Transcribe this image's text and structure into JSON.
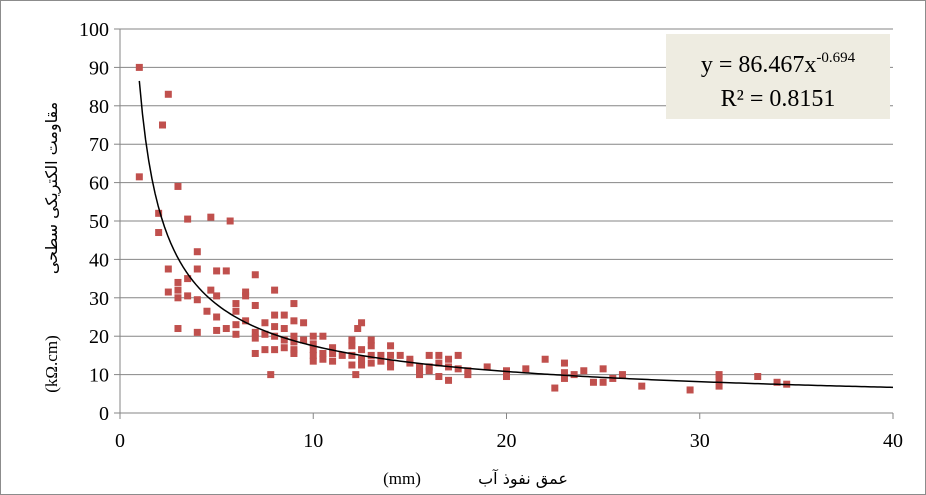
{
  "chart_data": {
    "type": "scatter",
    "xlabel": {
      "text": "عمق نفوذ آب",
      "unit": "(mm)"
    },
    "ylabel": {
      "text": "مقاومت الکتریکی سطحی",
      "unit": "(kΩ.cm)"
    },
    "xlim": [
      0,
      40
    ],
    "ylim": [
      0,
      100
    ],
    "x_ticks": [
      0,
      10,
      20,
      30,
      40
    ],
    "y_ticks": [
      0,
      10,
      20,
      30,
      40,
      50,
      60,
      70,
      80,
      90,
      100
    ],
    "grid": "horizontal",
    "marker_color": "#c0504d",
    "trendline_color": "#000000",
    "equation_box_color": "#eeece1",
    "trendline": {
      "type": "power",
      "a": 86.467,
      "b": -0.694,
      "x_range": [
        1,
        40
      ],
      "equation_prefix": "y = 86.467x",
      "equation_exponent": "-0.694",
      "r2_label": "R² = 0.8151"
    },
    "points": [
      [
        1.0,
        90.0
      ],
      [
        1.0,
        61.5
      ],
      [
        2.0,
        52.0
      ],
      [
        2.0,
        47.0
      ],
      [
        2.2,
        75.0
      ],
      [
        2.5,
        83.0
      ],
      [
        2.5,
        37.5
      ],
      [
        2.5,
        31.5
      ],
      [
        3.0,
        59.0
      ],
      [
        3.0,
        34.0
      ],
      [
        3.0,
        32.0
      ],
      [
        3.0,
        30.0
      ],
      [
        3.0,
        22.0
      ],
      [
        3.5,
        50.5
      ],
      [
        3.5,
        35.0
      ],
      [
        3.5,
        30.5
      ],
      [
        4.0,
        42.0
      ],
      [
        4.0,
        37.5
      ],
      [
        4.0,
        29.5
      ],
      [
        4.0,
        21.0
      ],
      [
        4.5,
        26.5
      ],
      [
        4.7,
        51.0
      ],
      [
        4.7,
        32.0
      ],
      [
        5.0,
        37.0
      ],
      [
        5.0,
        30.5
      ],
      [
        5.0,
        25.0
      ],
      [
        5.0,
        21.5
      ],
      [
        5.5,
        37.0
      ],
      [
        5.5,
        22.0
      ],
      [
        5.7,
        50.0
      ],
      [
        6.0,
        28.5
      ],
      [
        6.0,
        26.5
      ],
      [
        6.0,
        23.0
      ],
      [
        6.0,
        20.5
      ],
      [
        6.5,
        31.5
      ],
      [
        6.5,
        30.5
      ],
      [
        6.5,
        24.0
      ],
      [
        7.0,
        36.0
      ],
      [
        7.0,
        28.0
      ],
      [
        7.0,
        21.0
      ],
      [
        7.0,
        19.5
      ],
      [
        7.0,
        15.5
      ],
      [
        7.5,
        23.5
      ],
      [
        7.5,
        20.5
      ],
      [
        7.5,
        16.5
      ],
      [
        7.8,
        10.0
      ],
      [
        8.0,
        32.0
      ],
      [
        8.0,
        25.5
      ],
      [
        8.0,
        22.5
      ],
      [
        8.0,
        20.0
      ],
      [
        8.0,
        16.5
      ],
      [
        8.5,
        25.5
      ],
      [
        8.5,
        22.0
      ],
      [
        8.5,
        19.0
      ],
      [
        8.5,
        17.0
      ],
      [
        9.0,
        28.5
      ],
      [
        9.0,
        24.0
      ],
      [
        9.0,
        20.0
      ],
      [
        9.0,
        18.5
      ],
      [
        9.0,
        16.5
      ],
      [
        9.0,
        15.5
      ],
      [
        9.5,
        23.5
      ],
      [
        9.5,
        19.0
      ],
      [
        10.0,
        20.0
      ],
      [
        10.0,
        18.0
      ],
      [
        10.0,
        16.5
      ],
      [
        10.0,
        15.0
      ],
      [
        10.0,
        13.5
      ],
      [
        10.5,
        20.0
      ],
      [
        10.5,
        15.5
      ],
      [
        10.5,
        14.0
      ],
      [
        11.0,
        17.0
      ],
      [
        11.0,
        15.5
      ],
      [
        11.0,
        13.5
      ],
      [
        11.5,
        15.0
      ],
      [
        12.0,
        19.0
      ],
      [
        12.0,
        17.5
      ],
      [
        12.0,
        15.0
      ],
      [
        12.0,
        12.5
      ],
      [
        12.2,
        10.0
      ],
      [
        12.3,
        22.0
      ],
      [
        12.5,
        23.5
      ],
      [
        12.5,
        16.5
      ],
      [
        12.5,
        14.0
      ],
      [
        12.5,
        12.5
      ],
      [
        13.0,
        19.0
      ],
      [
        13.0,
        17.5
      ],
      [
        13.0,
        15.0
      ],
      [
        13.0,
        13.0
      ],
      [
        13.5,
        15.0
      ],
      [
        13.5,
        13.5
      ],
      [
        14.0,
        17.5
      ],
      [
        14.0,
        15.0
      ],
      [
        14.0,
        13.0
      ],
      [
        14.0,
        12.0
      ],
      [
        14.5,
        15.0
      ],
      [
        15.0,
        14.0
      ],
      [
        15.0,
        13.0
      ],
      [
        15.5,
        12.0
      ],
      [
        15.5,
        11.0
      ],
      [
        15.5,
        10.0
      ],
      [
        16.0,
        15.0
      ],
      [
        16.0,
        12.0
      ],
      [
        16.0,
        11.0
      ],
      [
        16.5,
        15.0
      ],
      [
        16.5,
        13.0
      ],
      [
        16.5,
        9.5
      ],
      [
        17.0,
        14.0
      ],
      [
        17.0,
        12.0
      ],
      [
        17.0,
        8.5
      ],
      [
        17.5,
        15.0
      ],
      [
        17.5,
        11.5
      ],
      [
        18.0,
        11.0
      ],
      [
        18.0,
        10.0
      ],
      [
        19.0,
        12.0
      ],
      [
        20.0,
        11.0
      ],
      [
        20.0,
        9.5
      ],
      [
        21.0,
        11.5
      ],
      [
        22.0,
        14.0
      ],
      [
        22.5,
        6.5
      ],
      [
        23.0,
        13.0
      ],
      [
        23.0,
        10.5
      ],
      [
        23.0,
        9.0
      ],
      [
        23.5,
        10.0
      ],
      [
        24.0,
        11.0
      ],
      [
        24.5,
        8.0
      ],
      [
        25.0,
        11.5
      ],
      [
        25.0,
        8.0
      ],
      [
        25.5,
        9.0
      ],
      [
        26.0,
        10.0
      ],
      [
        27.0,
        7.0
      ],
      [
        29.5,
        6.0
      ],
      [
        31.0,
        10.0
      ],
      [
        31.0,
        9.0
      ],
      [
        31.0,
        7.0
      ],
      [
        33.0,
        9.5
      ],
      [
        34.0,
        8.0
      ],
      [
        34.5,
        7.5
      ]
    ]
  }
}
